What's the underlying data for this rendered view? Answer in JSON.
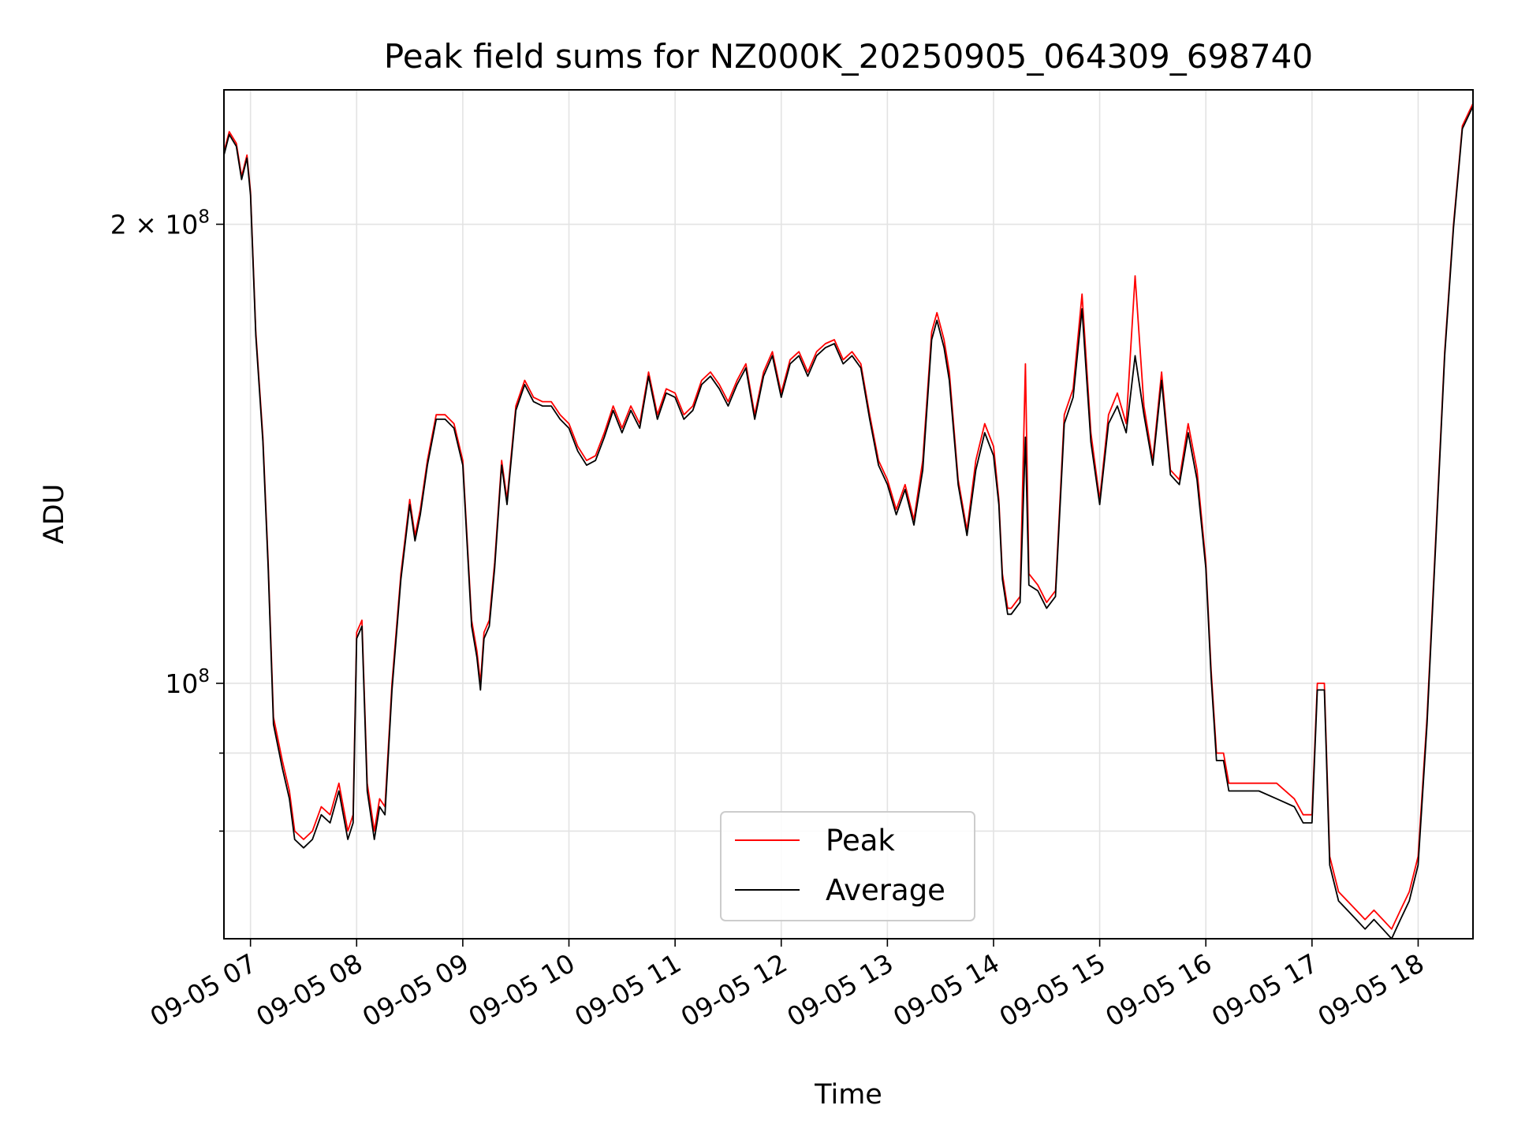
{
  "chart_data": {
    "type": "line",
    "title": "Peak field sums for NZ000K_20250905_064309_698740",
    "xlabel": "Time",
    "ylabel": "ADU",
    "yscale": "log",
    "xlim": [
      "09-05 06:45",
      "09-05 18:31"
    ],
    "ylim": [
      68000000,
      245000000
    ],
    "grid": true,
    "legend_position": "lower center",
    "x_ticks": [
      "09-05 07",
      "09-05 08",
      "09-05 09",
      "09-05 10",
      "09-05 11",
      "09-05 12",
      "09-05 13",
      "09-05 14",
      "09-05 15",
      "09-05 16",
      "09-05 17",
      "09-05 18"
    ],
    "y_ticks": [
      {
        "value": 100000000,
        "base": "10",
        "exp": "8",
        "coef": ""
      },
      {
        "value": 200000000,
        "base": "10",
        "exp": "8",
        "coef": "2 × "
      }
    ],
    "y_minor_ticks": [
      80000000,
      90000000,
      300000000
    ],
    "x": [
      "06:45",
      "06:48",
      "06:52",
      "06:55",
      "06:58",
      "07:00",
      "07:03",
      "07:07",
      "07:10",
      "07:13",
      "07:18",
      "07:22",
      "07:25",
      "07:30",
      "07:35",
      "07:40",
      "07:45",
      "07:50",
      "07:55",
      "07:58",
      "08:00",
      "08:03",
      "08:06",
      "08:10",
      "08:13",
      "08:16",
      "08:20",
      "08:25",
      "08:30",
      "08:33",
      "08:36",
      "08:40",
      "08:45",
      "08:50",
      "08:55",
      "09:00",
      "09:05",
      "09:08",
      "09:10",
      "09:12",
      "09:15",
      "09:18",
      "09:22",
      "09:25",
      "09:30",
      "09:35",
      "09:40",
      "09:45",
      "09:50",
      "09:55",
      "10:00",
      "10:05",
      "10:10",
      "10:15",
      "10:20",
      "10:25",
      "10:30",
      "10:35",
      "10:40",
      "10:45",
      "10:50",
      "10:55",
      "11:00",
      "11:05",
      "11:10",
      "11:15",
      "11:20",
      "11:25",
      "11:30",
      "11:35",
      "11:40",
      "11:45",
      "11:50",
      "11:55",
      "12:00",
      "12:05",
      "12:10",
      "12:15",
      "12:20",
      "12:25",
      "12:30",
      "12:35",
      "12:40",
      "12:45",
      "12:50",
      "12:55",
      "13:00",
      "13:05",
      "13:10",
      "13:15",
      "13:20",
      "13:25",
      "13:28",
      "13:32",
      "13:35",
      "13:40",
      "13:45",
      "13:50",
      "13:55",
      "14:00",
      "14:03",
      "14:05",
      "14:08",
      "14:10",
      "14:15",
      "14:18",
      "14:20",
      "14:25",
      "14:30",
      "14:35",
      "14:40",
      "14:45",
      "14:50",
      "14:55",
      "15:00",
      "15:05",
      "15:10",
      "15:15",
      "15:20",
      "15:25",
      "15:30",
      "15:35",
      "15:40",
      "15:45",
      "15:50",
      "15:55",
      "16:00",
      "16:03",
      "16:06",
      "16:10",
      "16:13",
      "16:15",
      "16:20",
      "16:30",
      "16:40",
      "16:50",
      "16:55",
      "17:00",
      "17:03",
      "17:07",
      "17:10",
      "17:15",
      "17:20",
      "17:25",
      "17:30",
      "17:35",
      "17:40",
      "17:45",
      "17:50",
      "17:55",
      "18:00",
      "18:05",
      "18:10",
      "18:15",
      "18:20",
      "18:25",
      "18:31"
    ],
    "series": [
      {
        "name": "Peak",
        "color": "#ff0000",
        "values": [
          223000000,
          230000000,
          226000000,
          215000000,
          222000000,
          210000000,
          170000000,
          145000000,
          120000000,
          95000000,
          89000000,
          85000000,
          80000000,
          79000000,
          80000000,
          83000000,
          82000000,
          86000000,
          80000000,
          82000000,
          108000000,
          110000000,
          86000000,
          80000000,
          84000000,
          83000000,
          100000000,
          118000000,
          132000000,
          125000000,
          130000000,
          140000000,
          150000000,
          150000000,
          148000000,
          140000000,
          110000000,
          105000000,
          100000000,
          108000000,
          110000000,
          120000000,
          140000000,
          132000000,
          152000000,
          158000000,
          154000000,
          153000000,
          153000000,
          150000000,
          148000000,
          143000000,
          140000000,
          141000000,
          146000000,
          152000000,
          147000000,
          152000000,
          148000000,
          160000000,
          150000000,
          156000000,
          155000000,
          150000000,
          152000000,
          158000000,
          160000000,
          157000000,
          153000000,
          158000000,
          162000000,
          150000000,
          160000000,
          165000000,
          155000000,
          163000000,
          165000000,
          160000000,
          165000000,
          167000000,
          168000000,
          163000000,
          165000000,
          162000000,
          150000000,
          140000000,
          136000000,
          130000000,
          135000000,
          128000000,
          140000000,
          170000000,
          175000000,
          168000000,
          160000000,
          136000000,
          126000000,
          140000000,
          148000000,
          143000000,
          132000000,
          118000000,
          112000000,
          112000000,
          114000000,
          162000000,
          118000000,
          116000000,
          113000000,
          115000000,
          150000000,
          156000000,
          180000000,
          146000000,
          132000000,
          150000000,
          155000000,
          148000000,
          185000000,
          152000000,
          140000000,
          160000000,
          138000000,
          136000000,
          148000000,
          138000000,
          120000000,
          102000000,
          90000000,
          90000000,
          86000000,
          86000000,
          86000000,
          86000000,
          86000000,
          84000000,
          82000000,
          82000000,
          100000000,
          100000000,
          77000000,
          73000000,
          72000000,
          71000000,
          70000000,
          71000000,
          70000000,
          69000000,
          71000000,
          73000000,
          77000000,
          95000000,
          125000000,
          165000000,
          200000000,
          232000000,
          240000000
        ]
      },
      {
        "name": "Average",
        "color": "#000000",
        "values": [
          222000000,
          229000000,
          225000000,
          214000000,
          221000000,
          209000000,
          169000000,
          144000000,
          119000000,
          94000000,
          88000000,
          84000000,
          79000000,
          78000000,
          79000000,
          82000000,
          81000000,
          85000000,
          79000000,
          81000000,
          107000000,
          109000000,
          85000000,
          79000000,
          83000000,
          82000000,
          99000000,
          117000000,
          131000000,
          124000000,
          129000000,
          139000000,
          149000000,
          149000000,
          147000000,
          139000000,
          109000000,
          104000000,
          99000000,
          107000000,
          109000000,
          119000000,
          139000000,
          131000000,
          151000000,
          157000000,
          153000000,
          152000000,
          152000000,
          149000000,
          147000000,
          142000000,
          139000000,
          140000000,
          145000000,
          151000000,
          146000000,
          151000000,
          147000000,
          159000000,
          149000000,
          155000000,
          154000000,
          149000000,
          151000000,
          157000000,
          159000000,
          156000000,
          152000000,
          157000000,
          161000000,
          149000000,
          159000000,
          164000000,
          154000000,
          162000000,
          164000000,
          159000000,
          164000000,
          166000000,
          167000000,
          162000000,
          164000000,
          161000000,
          149000000,
          139000000,
          135000000,
          129000000,
          134000000,
          127000000,
          138000000,
          168000000,
          173000000,
          166000000,
          158000000,
          135000000,
          125000000,
          138000000,
          146000000,
          141000000,
          131000000,
          117000000,
          111000000,
          111000000,
          113000000,
          145000000,
          116000000,
          115000000,
          112000000,
          114000000,
          148000000,
          154000000,
          176000000,
          144000000,
          131000000,
          148000000,
          152000000,
          146000000,
          164000000,
          150000000,
          139000000,
          158000000,
          137000000,
          135000000,
          146000000,
          136000000,
          119000000,
          101000000,
          89000000,
          89000000,
          85000000,
          85000000,
          85000000,
          85000000,
          84000000,
          83000000,
          81000000,
          81000000,
          99000000,
          99000000,
          76000000,
          72000000,
          71000000,
          70000000,
          69000000,
          70000000,
          69000000,
          68000000,
          70000000,
          72000000,
          76000000,
          94000000,
          124000000,
          164000000,
          199000000,
          231000000,
          239000000
        ]
      }
    ]
  }
}
